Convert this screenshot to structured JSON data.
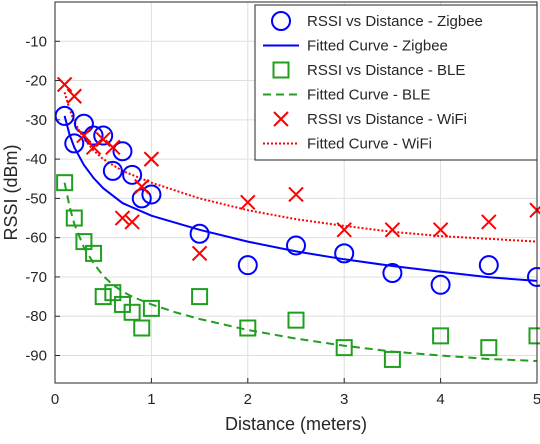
{
  "chart_data": {
    "type": "scatter",
    "title": "",
    "xlabel": "Distance (meters)",
    "ylabel": "RSSI (dBm)",
    "xlim": [
      0,
      5
    ],
    "ylim": [
      -97,
      0
    ],
    "xticks": [
      0,
      1,
      2,
      3,
      4,
      5
    ],
    "yticks": [
      -90,
      -80,
      -70,
      -60,
      -50,
      -40,
      -30,
      -20,
      -10
    ],
    "grid": true,
    "legend_position": "top-right",
    "series": [
      {
        "name": "RSSI vs Distance - Zigbee",
        "kind": "scatter",
        "marker": "circle",
        "color": "#0000ff",
        "x": [
          0.1,
          0.2,
          0.3,
          0.4,
          0.5,
          0.6,
          0.7,
          0.8,
          0.9,
          1.0,
          1.5,
          2.0,
          2.5,
          3.0,
          3.5,
          4.0,
          4.5,
          5.0
        ],
        "y": [
          -29,
          -36,
          -31,
          -34,
          -34,
          -43,
          -38,
          -44,
          -50,
          -49,
          -59,
          -67,
          -62,
          -64,
          -69,
          -72,
          -67,
          -70
        ]
      },
      {
        "name": "Fitted Curve - Zigbee",
        "kind": "line",
        "dash": "solid",
        "color": "#0000ff",
        "x": [
          0.1,
          0.15,
          0.2,
          0.3,
          0.4,
          0.5,
          0.7,
          1.0,
          1.5,
          2.0,
          2.5,
          3.0,
          3.5,
          4.0,
          4.5,
          5.0
        ],
        "y": [
          -29.0,
          -33.7,
          -37.0,
          -41.5,
          -44.8,
          -47.4,
          -51.2,
          -54.4,
          -58.0,
          -61.0,
          -63.5,
          -65.5,
          -67.2,
          -68.7,
          -70.1,
          -71.0
        ]
      },
      {
        "name": "RSSI vs Distance - BLE",
        "kind": "scatter",
        "marker": "square",
        "color": "#1f9e1f",
        "x": [
          0.1,
          0.2,
          0.3,
          0.4,
          0.5,
          0.6,
          0.7,
          0.8,
          0.9,
          1.0,
          1.5,
          2.0,
          2.5,
          3.0,
          3.5,
          4.0,
          4.5,
          5.0
        ],
        "y": [
          -46,
          -55,
          -61,
          -64,
          -75,
          -74,
          -77,
          -79,
          -83,
          -78,
          -75,
          -83,
          -81,
          -88,
          -91,
          -85,
          -88,
          -85
        ]
      },
      {
        "name": "Fitted Curve - BLE",
        "kind": "line",
        "dash": "dashed",
        "color": "#1f9e1f",
        "x": [
          0.1,
          0.15,
          0.2,
          0.3,
          0.4,
          0.5,
          0.6,
          0.7,
          0.8,
          1.0,
          1.25,
          1.5,
          2.0,
          2.5,
          3.0,
          3.5,
          4.0,
          4.5,
          5.0
        ],
        "y": [
          -46.0,
          -52.0,
          -56.5,
          -62.5,
          -66.5,
          -69.7,
          -72.0,
          -73.7,
          -75.0,
          -77.0,
          -79.0,
          -80.7,
          -83.5,
          -85.7,
          -87.5,
          -89.0,
          -90.0,
          -90.9,
          -91.4
        ]
      },
      {
        "name": "RSSI vs Distance - WiFi",
        "kind": "scatter",
        "marker": "x",
        "color": "#ff0000",
        "x": [
          0.1,
          0.2,
          0.3,
          0.4,
          0.5,
          0.6,
          0.7,
          0.8,
          0.9,
          1.0,
          1.5,
          2.0,
          2.5,
          3.0,
          3.5,
          4.0,
          4.5,
          5.0
        ],
        "y": [
          -21,
          -24,
          -34,
          -37,
          -35,
          -37,
          -55,
          -56,
          -47,
          -40,
          -64,
          -51,
          -49,
          -58,
          -58,
          -58,
          -56,
          -53
        ]
      },
      {
        "name": "Fitted Curve - WiFi",
        "kind": "line",
        "dash": "dotted",
        "color": "#ff0000",
        "x": [
          0.1,
          0.15,
          0.2,
          0.3,
          0.4,
          0.5,
          0.7,
          1.0,
          1.5,
          2.0,
          2.5,
          3.0,
          3.5,
          4.0,
          4.5,
          5.0
        ],
        "y": [
          -23.0,
          -27.3,
          -30.5,
          -34.8,
          -37.8,
          -40.0,
          -43.0,
          -46.0,
          -50.0,
          -53.0,
          -55.3,
          -57.0,
          -58.5,
          -59.6,
          -60.3,
          -61.0
        ]
      }
    ]
  }
}
